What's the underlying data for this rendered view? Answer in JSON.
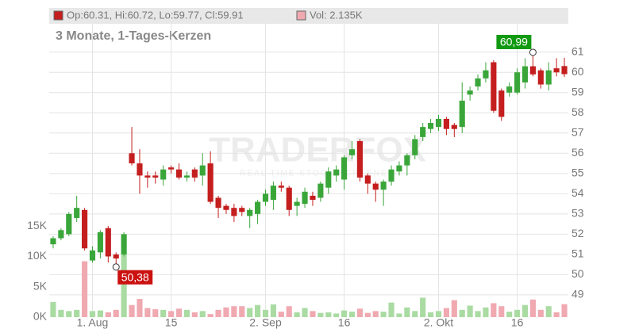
{
  "chart_data": {
    "type": "candlestick",
    "info": "Op:60.31, Hi:60.72, Lo:59.77, Cl:59.91",
    "volume_info": "Vol: 2.135K",
    "subtitle": "3 Monate, 1-Tages-Kerzen",
    "watermark": "TRADERFOX",
    "watermark_sub": "REAL TIME STOCK SCREENER",
    "categories": [
      null,
      null,
      null,
      null,
      null,
      "1. Aug",
      null,
      null,
      null,
      null,
      null,
      null,
      null,
      null,
      null,
      "15",
      null,
      null,
      null,
      null,
      null,
      null,
      null,
      null,
      null,
      null,
      null,
      "2. Sep",
      null,
      null,
      null,
      null,
      null,
      null,
      null,
      null,
      null,
      "16",
      null,
      null,
      null,
      null,
      null,
      null,
      null,
      null,
      null,
      null,
      null,
      "2. Okt",
      null,
      null,
      null,
      null,
      null,
      null,
      null,
      null,
      null,
      "16",
      null,
      null,
      null,
      null,
      null,
      null
    ],
    "open": [
      51.5,
      51.8,
      52.0,
      52.8,
      53.2,
      50.7,
      51.1,
      52.3,
      51.0,
      51.0,
      56.0,
      55.5,
      54.9,
      54.9,
      54.7,
      55.3,
      55.2,
      54.8,
      55.2,
      54.9,
      55.5,
      53.8,
      53.4,
      53.3,
      53.3,
      52.9,
      53.0,
      53.6,
      53.7,
      54.4,
      54.3,
      53.4,
      53.5,
      53.9,
      53.8,
      54.3,
      54.9,
      54.7,
      55.9,
      56.6,
      54.9,
      54.5,
      54.2,
      54.6,
      55.1,
      55.4,
      55.9,
      56.8,
      57.2,
      57.3,
      57.7,
      57.4,
      57.3,
      58.9,
      59.3,
      59.7,
      60.5,
      59.1,
      59.0,
      59.0,
      59.5,
      60.3,
      60.1,
      59.4,
      60.2,
      60.31
    ],
    "high": [
      51.9,
      52.3,
      53.1,
      53.9,
      53.3,
      51.4,
      52.2,
      52.4,
      51.1,
      52.1,
      57.3,
      56.2,
      55.1,
      55.1,
      55.4,
      55.4,
      55.5,
      55.1,
      55.3,
      56.0,
      56.1,
      53.9,
      53.5,
      53.5,
      53.4,
      53.3,
      53.7,
      54.2,
      54.6,
      54.6,
      54.4,
      53.8,
      54.3,
      54.1,
      54.6,
      55.3,
      55.4,
      55.9,
      56.6,
      56.7,
      55.0,
      54.6,
      54.7,
      55.4,
      55.6,
      56.0,
      56.9,
      57.5,
      57.7,
      57.9,
      57.8,
      57.5,
      59.5,
      59.3,
      59.9,
      60.5,
      60.6,
      59.2,
      59.5,
      60.2,
      60.7,
      60.99,
      60.2,
      60.5,
      60.7,
      60.72
    ],
    "low": [
      51.3,
      51.7,
      51.9,
      52.6,
      51.2,
      50.6,
      50.8,
      50.6,
      50.38,
      50.9,
      55.4,
      54.0,
      54.3,
      54.5,
      54.4,
      55.0,
      54.7,
      54.6,
      54.6,
      54.4,
      53.5,
      52.8,
      53.0,
      52.6,
      52.9,
      52.3,
      52.5,
      53.4,
      53.2,
      54.1,
      52.9,
      52.9,
      53.3,
      53.4,
      53.6,
      54.0,
      54.6,
      54.2,
      55.7,
      54.6,
      54.0,
      53.6,
      53.4,
      54.4,
      54.9,
      54.9,
      55.7,
      56.6,
      57.0,
      57.1,
      56.9,
      56.8,
      57.0,
      58.6,
      59.1,
      59.5,
      58.0,
      57.6,
      58.8,
      58.9,
      59.2,
      59.8,
      59.2,
      59.1,
      59.8,
      59.77
    ],
    "close": [
      51.8,
      52.2,
      53.0,
      53.3,
      51.3,
      51.2,
      52.1,
      50.9,
      50.8,
      52.0,
      55.5,
      54.9,
      54.8,
      54.8,
      55.2,
      55.2,
      54.8,
      54.9,
      54.8,
      55.4,
      53.6,
      53.3,
      53.2,
      52.9,
      53.1,
      53.2,
      53.6,
      54.0,
      54.4,
      54.3,
      53.2,
      53.6,
      54.1,
      53.7,
      54.5,
      55.1,
      55.2,
      55.8,
      56.2,
      54.8,
      54.5,
      54.2,
      54.6,
      55.2,
      55.4,
      55.9,
      56.7,
      57.3,
      57.5,
      57.7,
      57.2,
      57.2,
      58.6,
      59.1,
      59.7,
      60.1,
      58.1,
      57.8,
      59.3,
      60.0,
      60.3,
      59.9,
      59.4,
      60.1,
      60.0,
      59.91
    ],
    "volume": [
      2.5,
      1.2,
      1.0,
      1.2,
      9.2,
      1.0,
      1.1,
      0.8,
      1.2,
      10.5,
      2.0,
      3.0,
      1.5,
      1.3,
      1.2,
      1.0,
      1.4,
      1.2,
      0.8,
      1.0,
      0.5,
      1.2,
      1.6,
      1.8,
      1.8,
      1.5,
      2.0,
      1.2,
      2.1,
      0.9,
      1.8,
      0.8,
      1.5,
      1.0,
      0.7,
      0.8,
      0.6,
      1.1,
      0.9,
      1.4,
      0.7,
      1.0,
      0.9,
      2.4,
      0.6,
      1.6,
      1.0,
      3.2,
      0.8,
      1.0,
      1.5,
      2.8,
      1.2,
      1.9,
      1.0,
      1.6,
      2.3,
      1.8,
      0.9,
      1.2,
      2.0,
      2.9,
      1.2,
      1.8,
      0.8,
      2.135
    ],
    "up_color": "#3aa63a",
    "down_color": "#c41e1e",
    "volume_up_color": "#a9dba2",
    "volume_down_color": "#f0a9b1",
    "ylim": [
      47.9,
      62.4
    ],
    "yticks": [
      49,
      50,
      51,
      52,
      53,
      54,
      55,
      56,
      57,
      58,
      59,
      60,
      61
    ],
    "y2lim": [
      0,
      48.3
    ],
    "y2ticks": [
      {
        "value": 0,
        "label": "0K"
      },
      {
        "value": 5,
        "label": "5K"
      },
      {
        "value": 10,
        "label": "10K"
      },
      {
        "value": 15,
        "label": "15K"
      }
    ],
    "annotations": [
      {
        "text": "60,99",
        "value": 60.99,
        "color": "#119a11"
      },
      {
        "text": "50,38",
        "value": 50.38,
        "color": "#cc1111"
      }
    ],
    "grid": true
  }
}
